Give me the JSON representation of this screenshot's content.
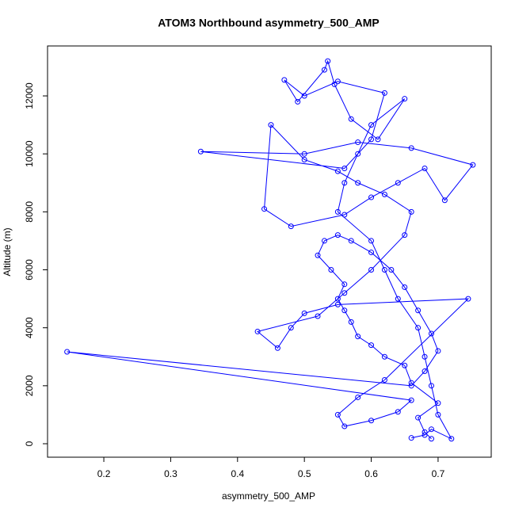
{
  "chart_data": {
    "type": "line",
    "title": "ATOM3 Northbound asymmetry_500_AMP",
    "xlabel": "asymmetry_500_AMP",
    "ylabel": "Altitude (m)",
    "xlim": [
      0.1158,
      0.7795
    ],
    "ylim": [
      -465,
      13723
    ],
    "xticks": [
      0.2,
      0.3,
      0.4,
      0.5,
      0.6,
      0.7
    ],
    "yticks": [
      0,
      2000,
      4000,
      6000,
      8000,
      10000,
      12000
    ],
    "series": [
      {
        "color": "#0000ff",
        "x": [
          0.69,
          0.68,
          0.67,
          0.7,
          0.66,
          0.65,
          0.62,
          0.6,
          0.58,
          0.57,
          0.56,
          0.55,
          0.56,
          0.54,
          0.52,
          0.53,
          0.55,
          0.57,
          0.6,
          0.63,
          0.65,
          0.67,
          0.69,
          0.7,
          0.68,
          0.66,
          0.145,
          0.66,
          0.64,
          0.6,
          0.56,
          0.55,
          0.58,
          0.62,
          0.745,
          0.55,
          0.5,
          0.48,
          0.46,
          0.43,
          0.52,
          0.56,
          0.6,
          0.65,
          0.66,
          0.62,
          0.58,
          0.55,
          0.5,
          0.45,
          0.44,
          0.48,
          0.56,
          0.6,
          0.64,
          0.68,
          0.71,
          0.752,
          0.66,
          0.58,
          0.5,
          0.345,
          0.56,
          0.6,
          0.62,
          0.55,
          0.5,
          0.47,
          0.49,
          0.53,
          0.535,
          0.545,
          0.57,
          0.61,
          0.65,
          0.6,
          0.58,
          0.56,
          0.55,
          0.6,
          0.62,
          0.64,
          0.67,
          0.68,
          0.69,
          0.7,
          0.72,
          0.69,
          0.68,
          0.66
        ],
        "values": [
          170,
          400,
          900,
          1400,
          2100,
          2700,
          3000,
          3400,
          3700,
          4200,
          4600,
          5000,
          5500,
          6000,
          6500,
          7000,
          7200,
          7000,
          6600,
          6000,
          5400,
          4600,
          3800,
          3200,
          2500,
          2000,
          3170,
          1500,
          1100,
          800,
          600,
          1000,
          1600,
          2200,
          5000,
          4800,
          4500,
          4000,
          3300,
          3870,
          4400,
          5200,
          6000,
          7200,
          8000,
          8600,
          9000,
          9400,
          9800,
          11000,
          8100,
          7500,
          7900,
          8500,
          9000,
          9500,
          8400,
          9620,
          10200,
          10400,
          10000,
          10080,
          9500,
          10500,
          12100,
          12500,
          12000,
          12550,
          11800,
          12900,
          13200,
          12400,
          11200,
          10500,
          11900,
          11000,
          10000,
          9000,
          8000,
          7000,
          6000,
          5000,
          4000,
          3000,
          2000,
          1000,
          170,
          500,
          300,
          200
        ]
      }
    ]
  }
}
